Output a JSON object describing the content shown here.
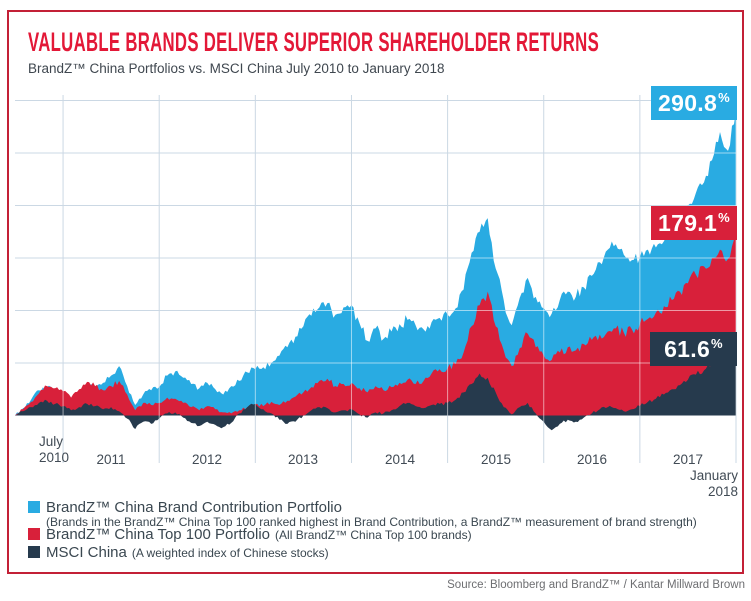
{
  "header": {
    "title": "VALUABLE BRANDS DELIVER SUPERIOR SHAREHOLDER RETURNS",
    "subtitle": "BrandZ™ China Portfolios vs. MSCI China July 2010 to January 2018"
  },
  "axis": {
    "start": [
      "July",
      "2010"
    ],
    "years": [
      "2011",
      "2012",
      "2013",
      "2014",
      "2015",
      "2016",
      "2017"
    ],
    "end": [
      "January",
      "2018"
    ]
  },
  "end_labels": [
    {
      "value": "290.8",
      "unit": "%"
    },
    {
      "value": "179.1",
      "unit": "%"
    },
    {
      "value": "61.6",
      "unit": "%"
    }
  ],
  "legend": [
    {
      "label": "BrandZ™ China Brand Contribution Portfolio",
      "note": "(Brands in the BrandZ™ China Top 100 ranked highest in Brand Contribution, a BrandZ™ measurement of brand strength)"
    },
    {
      "label": "BrandZ™ China Top 100 Portfolio",
      "note": "(All BrandZ™ China Top 100 brands)"
    },
    {
      "label": "MSCI China",
      "note": "(A weighted index of Chinese stocks)"
    }
  ],
  "source": "Source: Bloomberg and BrandZ™ / Kantar Millward Brown",
  "colors": {
    "title": "#E31837",
    "border": "#C32036",
    "gridline": "#CBD8E4",
    "gridline_over_data": "rgba(255,255,255,0.55)",
    "axis_text": "#414B55",
    "blue": "#29ABE2",
    "red": "#D8203A",
    "navy": "#263A4D",
    "source_text": "#6D6E71"
  },
  "chart_data": {
    "type": "area",
    "title": "BrandZ China Portfolios vs. MSCI China, cumulative return (%), monthly from July 2010 to January 2018",
    "x_unit": "month",
    "x_start": "2010-07",
    "x_end": "2018-01",
    "x_gridlines": "January of each year 2011-2018",
    "y_axis": {
      "unit": "%",
      "gridline_step": 50,
      "min": -20,
      "max": 300,
      "gridlines_shown": [
        50,
        100,
        150,
        200,
        250,
        300
      ]
    },
    "legend_position": "below",
    "final_values": {
      "brand_contribution": 290.8,
      "top100": 179.1,
      "msci": 61.6
    },
    "series": [
      {
        "name": "BrandZ China Brand Contribution Portfolio",
        "color": "#29ABE2",
        "final_label": "290.8%",
        "values": [
          0,
          7,
          15,
          24,
          27,
          24,
          19,
          14,
          22,
          29,
          26,
          31,
          38,
          47,
          28,
          10,
          20,
          24,
          27,
          38,
          42,
          36,
          30,
          26,
          31,
          25,
          20,
          28,
          33,
          41,
          44,
          46,
          50,
          57,
          65,
          75,
          85,
          95,
          103,
          107,
          96,
          103,
          105,
          88,
          71,
          83,
          73,
          80,
          87,
          91,
          86,
          82,
          89,
          93,
          96,
          102,
          120,
          155,
          175,
          188,
          140,
          110,
          86,
          112,
          131,
          113,
          102,
          97,
          110,
          118,
          113,
          122,
          133,
          146,
          158,
          163,
          153,
          148,
          151,
          158,
          160,
          166,
          175,
          186,
          200,
          212,
          222,
          243,
          270,
          252,
          290.8
        ]
      },
      {
        "name": "BrandZ China Top 100 Portfolio",
        "color": "#D8203A",
        "final_label": "179.1%",
        "values": [
          0,
          6,
          13,
          21,
          28,
          26,
          23,
          17,
          25,
          32,
          28,
          24,
          28,
          33,
          20,
          5,
          12,
          10,
          12,
          17,
          16,
          12,
          8,
          5,
          9,
          6,
          3,
          2,
          5,
          8,
          11,
          9,
          13,
          10,
          14,
          18,
          22,
          27,
          33,
          35,
          28,
          30,
          31,
          26,
          22,
          28,
          24,
          27,
          31,
          34,
          30,
          33,
          40,
          44,
          45,
          49,
          60,
          85,
          105,
          118,
          85,
          62,
          47,
          64,
          78,
          65,
          57,
          53,
          60,
          65,
          62,
          68,
          72,
          77,
          80,
          83,
          79,
          82,
          87,
          92,
          98,
          104,
          110,
          118,
          126,
          134,
          142,
          150,
          158,
          149,
          179.1
        ]
      },
      {
        "name": "MSCI China",
        "color": "#263A4D",
        "final_label": "61.6%",
        "values": [
          0,
          4,
          8,
          12,
          14,
          11,
          9,
          5,
          8,
          11,
          9,
          6,
          8,
          4,
          -3,
          -13,
          -6,
          -8,
          -3,
          2,
          3,
          -2,
          -7,
          -10,
          -6,
          -9,
          -11,
          -7,
          2,
          8,
          11,
          6,
          2,
          -4,
          -8,
          -6,
          0,
          5,
          8,
          7,
          3,
          5,
          6,
          1,
          -2,
          3,
          2,
          5,
          9,
          12,
          9,
          7,
          10,
          11,
          12,
          15,
          22,
          30,
          40,
          36,
          22,
          8,
          1,
          8,
          12,
          2,
          -6,
          -14,
          -8,
          -4,
          -6,
          -2,
          2,
          6,
          8,
          7,
          4,
          6,
          9,
          13,
          16,
          20,
          25,
          29,
          34,
          39,
          43,
          49,
          54,
          50,
          61.6
        ]
      }
    ]
  }
}
